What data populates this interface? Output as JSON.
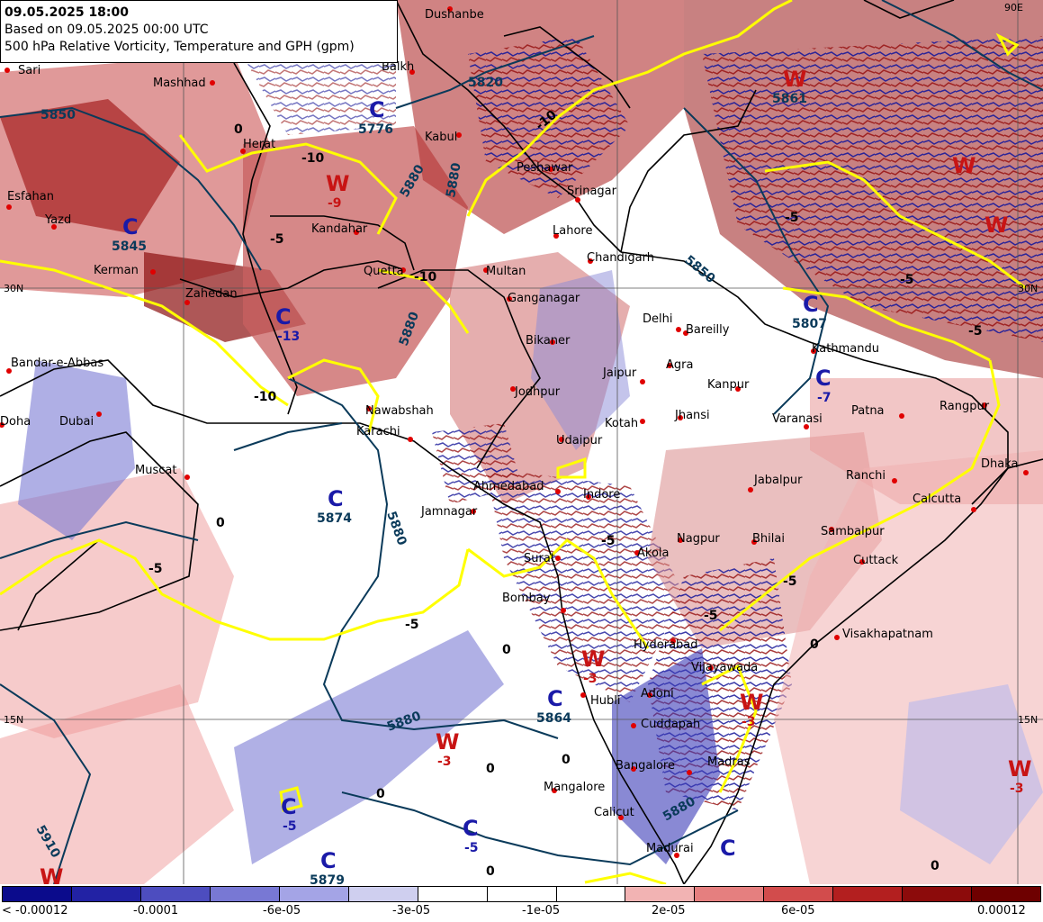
{
  "header": {
    "valid_time": "09.05.2025 18:00",
    "based_on": "Based on 09.05.2025 00:00 UTC",
    "parameter": "500 hPa Relative Vorticity, Temperature and GPH (gpm)"
  },
  "colors": {
    "legend": [
      "#0b0b8c",
      "#2222a4",
      "#4d4dbf",
      "#7878d4",
      "#a4a4e6",
      "#cfcfef",
      "#ffffff",
      "#ffffff",
      "#ffffff",
      "#f2b3b3",
      "#e57f7f",
      "#d24c4c",
      "#b31f1f",
      "#8c0b0b",
      "#6e0000"
    ],
    "temperature_contour": "#ffff00",
    "gph_contour": "#0a3a5a",
    "border": "#000000",
    "low_marker": "#1a1aa8",
    "high_marker": "#c81414"
  },
  "legend": {
    "labels": [
      "< -0.00012",
      "-0.0001",
      "-6e-05",
      "-3e-05",
      "-1e-05",
      "2e-05",
      "6e-05",
      "0.00012"
    ]
  },
  "grid_labels": [
    "30N",
    "15N",
    "30N",
    "15N",
    "90E"
  ],
  "cities": [
    {
      "name": "Dushanbe"
    },
    {
      "name": "Sari"
    },
    {
      "name": "Mashhad"
    },
    {
      "name": "Balkh"
    },
    {
      "name": "Herat"
    },
    {
      "name": "Kabul"
    },
    {
      "name": "Esfahan"
    },
    {
      "name": "Yazd"
    },
    {
      "name": "Kerman"
    },
    {
      "name": "Kandahar"
    },
    {
      "name": "Peshawar"
    },
    {
      "name": "Srinagar"
    },
    {
      "name": "Zahedan"
    },
    {
      "name": "Quetta"
    },
    {
      "name": "Multan"
    },
    {
      "name": "Lahore"
    },
    {
      "name": "Chandigarh"
    },
    {
      "name": "Ganganagar"
    },
    {
      "name": "Delhi"
    },
    {
      "name": "Bareilly"
    },
    {
      "name": "Bikaner"
    },
    {
      "name": "Kathmandu"
    },
    {
      "name": "Bandar-e-Abbas"
    },
    {
      "name": "Agra"
    },
    {
      "name": "Jaipur"
    },
    {
      "name": "Kanpur"
    },
    {
      "name": "Jodhpur"
    },
    {
      "name": "Nawabshah"
    },
    {
      "name": "Karachi"
    },
    {
      "name": "Jhansi"
    },
    {
      "name": "Varanasi"
    },
    {
      "name": "Patna"
    },
    {
      "name": "Rangpur"
    },
    {
      "name": "Doha"
    },
    {
      "name": "Dubai"
    },
    {
      "name": "Kotah"
    },
    {
      "name": "Udaipur"
    },
    {
      "name": "Muscat"
    },
    {
      "name": "Ahmedabad"
    },
    {
      "name": "Indore"
    },
    {
      "name": "Jabalpur"
    },
    {
      "name": "Ranchi"
    },
    {
      "name": "Dhaka"
    },
    {
      "name": "Calcutta"
    },
    {
      "name": "Jamnagar"
    },
    {
      "name": "Nagpur"
    },
    {
      "name": "Bhilai"
    },
    {
      "name": "Sambalpur"
    },
    {
      "name": "Surat"
    },
    {
      "name": "Akola"
    },
    {
      "name": "Cuttack"
    },
    {
      "name": "Bombay"
    },
    {
      "name": "Hyderabad"
    },
    {
      "name": "Visakhapatnam"
    },
    {
      "name": "Vijayawada"
    },
    {
      "name": "Hubli"
    },
    {
      "name": "Adoni"
    },
    {
      "name": "Cuddapah"
    },
    {
      "name": "Bangalore"
    },
    {
      "name": "Madras"
    },
    {
      "name": "Mangalore"
    },
    {
      "name": "Calicut"
    },
    {
      "name": "Madurai"
    }
  ],
  "pressure_systems": [
    {
      "type": "C",
      "value": "5776"
    },
    {
      "type": "W",
      "value": "5861"
    },
    {
      "type": "W",
      "value": "-9"
    },
    {
      "type": "C",
      "value": "5845"
    },
    {
      "type": "C",
      "value": "-13"
    },
    {
      "type": "C",
      "value": "5807"
    },
    {
      "type": "C",
      "value": "-7"
    },
    {
      "type": "C",
      "value": "5874"
    },
    {
      "type": "W",
      "value": "-3"
    },
    {
      "type": "C",
      "value": "5864"
    },
    {
      "type": "W",
      "value": "-3"
    },
    {
      "type": "W",
      "value": "-3"
    },
    {
      "type": "W",
      "value": "-3"
    },
    {
      "type": "C",
      "value": "-5"
    },
    {
      "type": "C",
      "value": "-5"
    },
    {
      "type": "C",
      "value": "5879"
    },
    {
      "type": "W",
      "value": ""
    },
    {
      "type": "W",
      "value": ""
    },
    {
      "type": "W",
      "value": ""
    },
    {
      "type": "C",
      "value": ""
    }
  ],
  "contour_labels": {
    "gph": [
      "5850",
      "5820",
      "5880",
      "5880",
      "5880",
      "5910",
      "5880",
      "5850",
      "5880",
      "5880"
    ],
    "temperature": [
      "-10",
      "-10",
      "-10",
      "-5",
      "-5",
      "-5",
      "-5",
      "-5",
      "-5",
      "-10",
      "-5",
      "-5",
      "-5",
      "0",
      "0",
      "0",
      "0",
      "0",
      "0",
      "0",
      "0",
      "0"
    ]
  }
}
